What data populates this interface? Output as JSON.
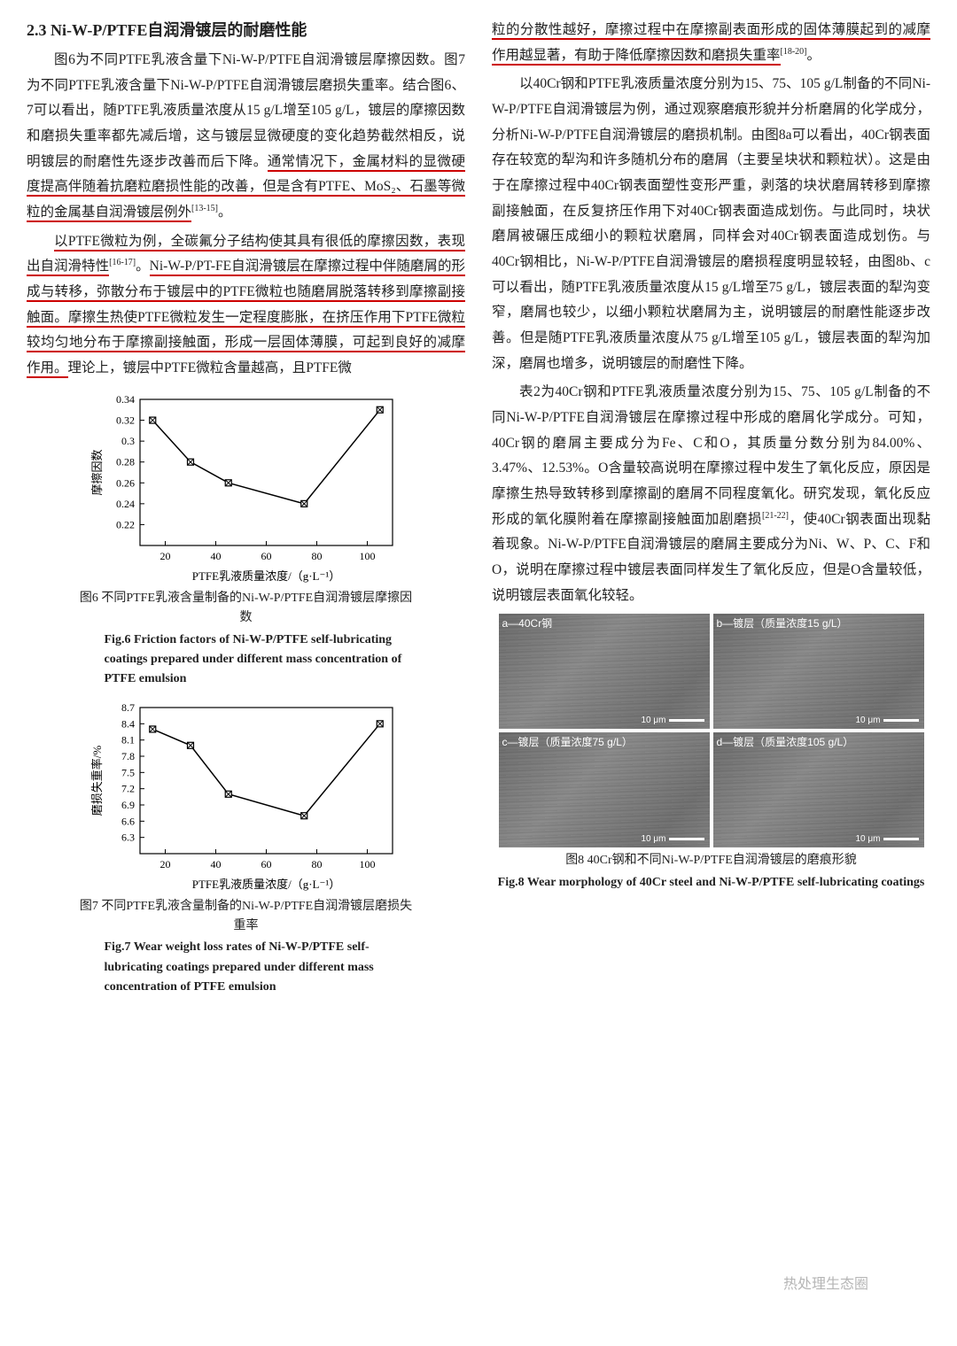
{
  "heading": "2.3  Ni-W-P/PTFE自润滑镀层的耐磨性能",
  "left": {
    "p1a": "图6为不同PTFE乳液含量下Ni-W-P/PTFE自润滑镀层摩擦因数。图7为不同PTFE乳液含量下Ni-W-P/PTFE自润滑镀层磨损失重率。结合图6、7可以看出，随PTFE乳液质量浓度从15 g/L增至105 g/L，镀层的摩擦因数和磨损失重率都先减后增，这与镀层显微硬度的变化趋势截然相反，说明镀层的耐磨性先逐步改善而后下降。",
    "p1b_u": "通常情况下，金属材料的显微硬度提高伴随着抗磨粒磨损性能的改善，但是含有PTFE、MoS₂、石墨等微粒的金属基自润滑镀层例外",
    "p1b_sup": "[13-15]",
    "p1b_tail": "。",
    "p2a_u": "以PTFE微粒为例，全碳氟分子结构使其具有很低的摩擦因数，表现出自润滑特性",
    "p2a_sup": "[16-17]",
    "p2a_mid": "。",
    "p2b_u": "Ni-W-P/PT-FE自润滑镀层在摩擦过程中伴随磨屑的形成与转移，弥散分布于镀层中的PTFE微粒也随磨屑脱落转移到摩擦副接触面。摩擦生热使PTFE微粒发生一定程度膨胀，在挤压作用下PTFE微粒较均匀地分布于摩擦副接触面，形成一层固体薄膜，可起到良好的减摩作用。",
    "p2c": "理论上，镀层中PTFE微粒含量越高，且PTFE微"
  },
  "right": {
    "p1a_u": "粒的分散性越好，摩擦过程中在摩擦副表面形成的固体薄膜起到的减摩作用越显著，有助于降低摩擦因数和磨损失重率",
    "p1a_sup": "[18-20]",
    "p1a_tail": "。",
    "p2": "以40Cr钢和PTFE乳液质量浓度分别为15、75、105 g/L制备的不同Ni-W-P/PTFE自润滑镀层为例，通过观察磨痕形貌并分析磨屑的化学成分，分析Ni-W-P/PTFE自润滑镀层的磨损机制。由图8a可以看出，40Cr钢表面存在较宽的犁沟和许多随机分布的磨屑（主要呈块状和颗粒状）。这是由于在摩擦过程中40Cr钢表面塑性变形严重，剥落的块状磨屑转移到摩擦副接触面，在反复挤压作用下对40Cr钢表面造成划伤。与此同时，块状磨屑被碾压成细小的颗粒状磨屑，同样会对40Cr钢表面造成划伤。与40Cr钢相比，Ni-W-P/PTFE自润滑镀层的磨损程度明显较轻，由图8b、c可以看出，随PTFE乳液质量浓度从15 g/L增至75 g/L，镀层表面的犁沟变窄，磨屑也较少，以细小颗粒状磨屑为主，说明镀层的耐磨性能逐步改善。但是随PTFE乳液质量浓度从75 g/L增至105 g/L，镀层表面的犁沟加深，磨屑也增多，说明镀层的耐磨性下降。",
    "p3a": "表2为40Cr钢和PTFE乳液质量浓度分别为15、75、105 g/L制备的不同Ni-W-P/PTFE自润滑镀层在摩擦过程中形成的磨屑化学成分。可知，40Cr钢的磨屑主要成分为Fe、C和O，其质量分数分别为84.00%、3.47%、12.53%。O含量较高说明在摩擦过程中发生了氧化反应，原因是摩擦生热导致转移到摩擦副的磨屑不同程度氧化。研究发现，氧化反应形成的氧化膜附着在摩擦副接触面加剧磨损",
    "p3a_sup": "[21-22]",
    "p3b": "，使40Cr钢表面出现黏着现象。Ni-W-P/PTFE自润滑镀层的磨屑主要成分为Ni、W、P、C、F和O，说明在摩擦过程中镀层表面同样发生了氧化反应，但是O含量较低，说明镀层表面氧化较轻。"
  },
  "fig6": {
    "type": "line",
    "x": [
      15,
      30,
      45,
      75,
      105
    ],
    "y": [
      0.32,
      0.28,
      0.26,
      0.24,
      0.33
    ],
    "xlabel": "PTFE乳液质量浓度/（g·L⁻¹）",
    "ylabel": "摩擦因数",
    "ylim": [
      0.2,
      0.34
    ],
    "ytick_step": 0.02,
    "xlim": [
      10,
      110
    ],
    "xtick_step": 20,
    "line_color": "#000000",
    "marker": "square-x",
    "marker_size": 7,
    "background": "#ffffff",
    "border_color": "#000000",
    "caption_cn": "图6 不同PTFE乳液含量制备的Ni-W-P/PTFE自润滑镀层摩擦因数",
    "caption_en": "Fig.6  Friction factors of Ni-W-P/PTFE self-lubricating coatings prepared under different mass concentration of PTFE emulsion"
  },
  "fig7": {
    "type": "line",
    "x": [
      15,
      30,
      45,
      75,
      105
    ],
    "y": [
      8.3,
      8.0,
      7.1,
      6.7,
      8.4
    ],
    "xlabel": "PTFE乳液质量浓度/（g·L⁻¹）",
    "ylabel": "磨损失重率/%",
    "ylim": [
      6.0,
      8.7
    ],
    "ytick_step": 0.3,
    "xlim": [
      10,
      110
    ],
    "xtick_step": 20,
    "line_color": "#000000",
    "marker": "square-x",
    "marker_size": 7,
    "background": "#ffffff",
    "border_color": "#000000",
    "caption_cn": "图7 不同PTFE乳液含量制备的Ni-W-P/PTFE自润滑镀层磨损失重率",
    "caption_en": "Fig.7  Wear weight loss rates of Ni-W-P/PTFE self-lubricating coatings prepared under different mass concentration of PTFE emulsion"
  },
  "fig8": {
    "panels": [
      {
        "id": "a",
        "label": "a—40Cr钢",
        "scale": "10 μm"
      },
      {
        "id": "b",
        "label": "b—镀层（质量浓度15 g/L）",
        "scale": "10 μm"
      },
      {
        "id": "c",
        "label": "c—镀层（质量浓度75 g/L）",
        "scale": "10 μm"
      },
      {
        "id": "d",
        "label": "d—镀层（质量浓度105 g/L）",
        "scale": "10 μm"
      }
    ],
    "caption_cn": "图8 40Cr钢和不同Ni-W-P/PTFE自润滑镀层的磨痕形貌",
    "caption_en": "Fig.8  Wear morphology of 40Cr steel and Ni-W-P/PTFE self-lubricating coatings"
  },
  "watermark": "热处理生态圈"
}
